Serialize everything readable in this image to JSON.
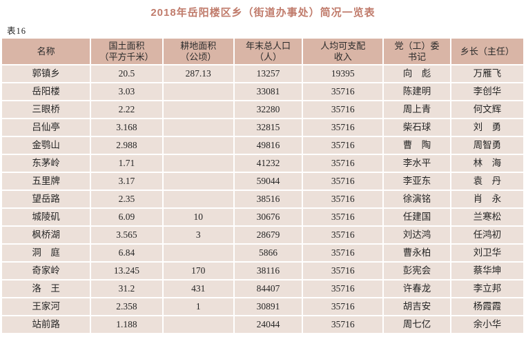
{
  "page": {
    "title": "2018年岳阳楼区乡（街道办事处）简况一览表",
    "table_label": "表16"
  },
  "colors": {
    "title_text": "#c07b6b",
    "header_bg": "#d9b5a6",
    "row_bg": "#ece0d9",
    "body_text": "#2b2b2b",
    "page_bg": "#ffffff"
  },
  "table": {
    "columns": [
      {
        "key": "name",
        "label": "名称"
      },
      {
        "key": "land_area",
        "label": "国土面积\n（平方千米）"
      },
      {
        "key": "cultivated_area",
        "label": "耕地面积\n（公顷）"
      },
      {
        "key": "population",
        "label": "年末总人口\n（人）"
      },
      {
        "key": "income",
        "label": "人均可支配\n收入"
      },
      {
        "key": "party_secretary",
        "label": "党（工）委\n书记"
      },
      {
        "key": "township_head",
        "label": "乡长（主任）"
      }
    ],
    "rows": [
      [
        "郭镇乡",
        "20.5",
        "287.13",
        "13257",
        "19395",
        "向　彪",
        "万雁飞"
      ],
      [
        "岳阳楼",
        "3.03",
        "",
        "33081",
        "35716",
        "陈建明",
        "李创华"
      ],
      [
        "三眼桥",
        "2.22",
        "",
        "32280",
        "35716",
        "周上青",
        "何文辉"
      ],
      [
        "吕仙亭",
        "3.168",
        "",
        "32815",
        "35716",
        "柴石球",
        "刘　勇"
      ],
      [
        "金鹗山",
        "2.988",
        "",
        "49816",
        "35716",
        "曹　陶",
        "周智勇"
      ],
      [
        "东茅岭",
        "1.71",
        "",
        "41232",
        "35716",
        "李水平",
        "林　海"
      ],
      [
        "五里牌",
        "3.17",
        "",
        "59044",
        "35716",
        "李亚东",
        "袁　丹"
      ],
      [
        "望岳路",
        "2.35",
        "",
        "38516",
        "35716",
        "徐演铭",
        "肖　永"
      ],
      [
        "城陵矶",
        "6.09",
        "10",
        "30676",
        "35716",
        "任建国",
        "兰寒松"
      ],
      [
        "枫桥湖",
        "3.565",
        "3",
        "28679",
        "35716",
        "刘达鸿",
        "任鸿初"
      ],
      [
        "洞　庭",
        "6.84",
        "",
        "5866",
        "35716",
        "曹永柏",
        "刘卫华"
      ],
      [
        "奇家岭",
        "13.245",
        "170",
        "38116",
        "35716",
        "彭宪会",
        "蔡华坤"
      ],
      [
        "洛　王",
        "31.2",
        "431",
        "84407",
        "35716",
        "许春龙",
        "李立邦"
      ],
      [
        "王家河",
        "2.358",
        "1",
        "30891",
        "35716",
        "胡吉安",
        "杨霞霞"
      ],
      [
        "站前路",
        "1.188",
        "",
        "24044",
        "35716",
        "周七亿",
        "余小华"
      ]
    ]
  }
}
